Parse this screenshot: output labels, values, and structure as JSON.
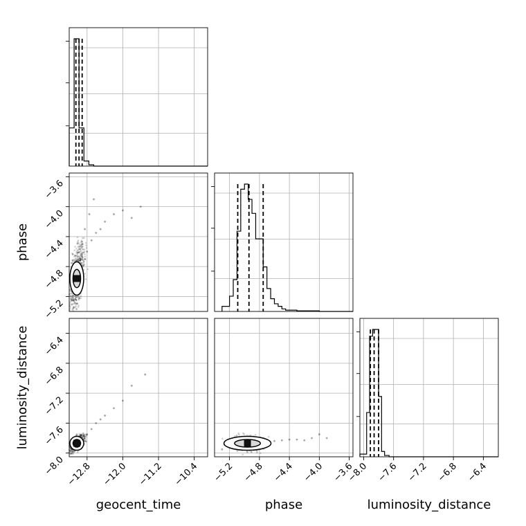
{
  "chart_data": {
    "type": "corner",
    "parameters": [
      "geocent_time",
      "phase",
      "luminosity_distance"
    ],
    "axis_labels": {
      "x": [
        "geocent_time",
        "phase",
        "luminosity_distance"
      ],
      "y": [
        "phase",
        "luminosity_distance"
      ]
    },
    "ranges": {
      "geocent_time": [
        -13.2,
        -10.1
      ],
      "phase": [
        -5.4,
        -3.55
      ],
      "luminosity_distance": [
        -8.05,
        -6.2
      ]
    },
    "ticks": {
      "geocent_time": [
        "-12.8",
        "-12.0",
        "-11.2",
        "-10.4"
      ],
      "phase": [
        "-5.2",
        "-4.8",
        "-4.4",
        "-4.0",
        "-3.6"
      ],
      "luminosity_distance": [
        "-8.0",
        "-7.6",
        "-7.2",
        "-6.8",
        "-6.4"
      ]
    },
    "quantiles": {
      "geocent_time": [
        -13.05,
        -12.98,
        -12.91
      ],
      "phase": [
        -5.09,
        -4.94,
        -4.75
      ],
      "luminosity_distance": [
        -7.91,
        -7.86,
        -7.8
      ]
    },
    "histograms": {
      "geocent_time": {
        "bins": [
          -13.2,
          -13.09,
          -12.98,
          -12.87,
          -12.76,
          -12.65
        ],
        "counts": [
          0.3,
          1.0,
          0.3,
          0.04,
          0.01
        ]
      },
      "phase": {
        "bins": [
          -5.3,
          -5.2,
          -5.15,
          -5.1,
          -5.05,
          -5.0,
          -4.95,
          -4.9,
          -4.85,
          -4.8,
          -4.75,
          -4.7,
          -4.65,
          -4.6,
          -4.55,
          -4.5,
          -4.45,
          -4.4,
          -4.3,
          -4.0
        ],
        "counts": [
          0.04,
          0.12,
          0.25,
          0.63,
          0.96,
          1.0,
          0.88,
          0.77,
          0.57,
          0.57,
          0.35,
          0.18,
          0.1,
          0.06,
          0.04,
          0.02,
          0.01,
          0.01,
          0.005
        ]
      },
      "luminosity_distance": {
        "bins": [
          -8.05,
          -7.96,
          -7.92,
          -7.88,
          -7.84,
          -7.8,
          -7.76,
          -7.72,
          -7.66
        ],
        "counts": [
          0.02,
          0.33,
          0.9,
          0.95,
          0.95,
          0.45,
          0.04,
          0.01
        ]
      }
    },
    "scatter": {
      "geocent_time_vs_phase": {
        "x": [
          -13.1,
          -13.05,
          -13.0,
          -12.95,
          -12.9,
          -12.85,
          -12.8,
          -12.7,
          -12.6,
          -12.5,
          -12.4,
          -12.2,
          -12.0,
          -11.8,
          -11.6,
          -12.9,
          -12.85,
          -12.75,
          -12.65
        ],
        "y": [
          -5.25,
          -5.15,
          -5.05,
          -4.95,
          -4.85,
          -4.7,
          -4.6,
          -4.45,
          -4.35,
          -4.3,
          -4.2,
          -4.1,
          -4.05,
          -4.15,
          -4.0,
          -4.5,
          -4.3,
          -4.1,
          -3.9
        ]
      },
      "geocent_time_vs_luminosity_distance": {
        "x": [
          -13.1,
          -13.05,
          -13.0,
          -12.95,
          -12.9,
          -12.85,
          -12.8,
          -12.7,
          -12.6,
          -12.5,
          -12.4,
          -12.2,
          -12.0,
          -11.8,
          -11.5
        ],
        "y": [
          -7.95,
          -7.92,
          -7.88,
          -7.85,
          -7.82,
          -7.78,
          -7.75,
          -7.68,
          -7.6,
          -7.55,
          -7.5,
          -7.4,
          -7.3,
          -7.1,
          -6.95
        ]
      },
      "phase_vs_luminosity_distance": {
        "x": [
          -5.3,
          -5.2,
          -5.1,
          -5.0,
          -4.9,
          -4.8,
          -4.7,
          -4.6,
          -4.5,
          -4.4,
          -4.3,
          -4.2,
          -4.1,
          -4.0,
          -3.9
        ],
        "y": [
          -7.95,
          -7.92,
          -7.9,
          -7.88,
          -7.87,
          -7.86,
          -7.85,
          -7.84,
          -7.83,
          -7.82,
          -7.82,
          -7.83,
          -7.8,
          -7.75,
          -7.8
        ]
      }
    },
    "density_centers": {
      "geocent_time_vs_phase": [
        -13.03,
        -4.96
      ],
      "geocent_time_vs_luminosity_distance": [
        -13.03,
        -7.87
      ],
      "phase_vs_luminosity_distance": [
        -4.96,
        -7.87
      ]
    }
  }
}
